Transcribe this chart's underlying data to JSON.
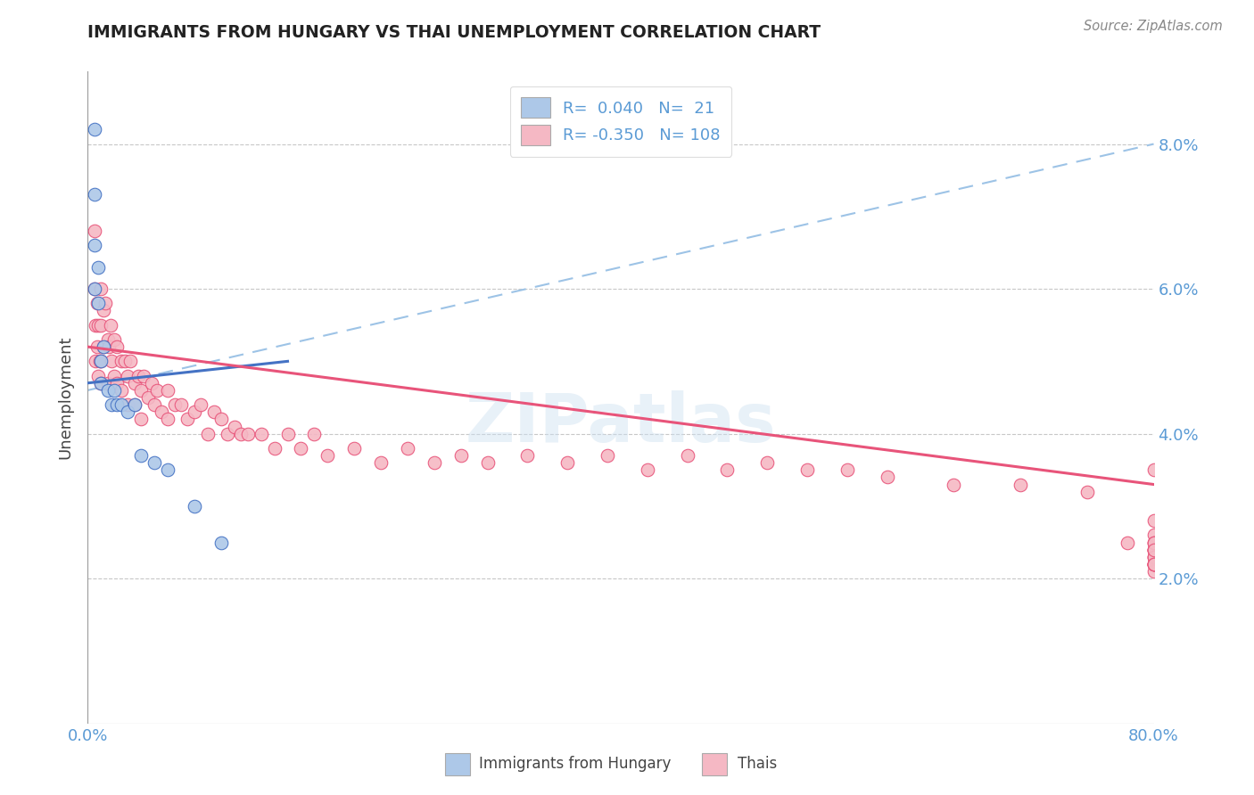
{
  "title": "IMMIGRANTS FROM HUNGARY VS THAI UNEMPLOYMENT CORRELATION CHART",
  "source": "Source: ZipAtlas.com",
  "ylabel": "Unemployment",
  "x_min": 0.0,
  "x_max": 0.8,
  "y_min": 0.0,
  "y_max": 0.09,
  "y_ticks": [
    0.02,
    0.04,
    0.06,
    0.08
  ],
  "y_tick_labels": [
    "2.0%",
    "4.0%",
    "6.0%",
    "8.0%"
  ],
  "legend_label1": "Immigrants from Hungary",
  "legend_label2": "Thais",
  "r1": 0.04,
  "n1": 21,
  "r2": -0.35,
  "n2": 108,
  "color_hungary": "#adc8e8",
  "color_thais": "#f5b8c4",
  "color_line_hungary": "#4472c4",
  "color_line_thais": "#e8547a",
  "color_dashed": "#9dc3e6",
  "watermark": "ZIPatlas",
  "hungary_x": [
    0.005,
    0.005,
    0.005,
    0.005,
    0.008,
    0.008,
    0.01,
    0.01,
    0.012,
    0.015,
    0.018,
    0.02,
    0.022,
    0.025,
    0.03,
    0.035,
    0.04,
    0.05,
    0.06,
    0.08,
    0.1
  ],
  "hungary_y": [
    0.082,
    0.073,
    0.066,
    0.06,
    0.063,
    0.058,
    0.05,
    0.047,
    0.052,
    0.046,
    0.044,
    0.046,
    0.044,
    0.044,
    0.043,
    0.044,
    0.037,
    0.036,
    0.035,
    0.03,
    0.025
  ],
  "thais_x": [
    0.005,
    0.005,
    0.006,
    0.006,
    0.007,
    0.007,
    0.008,
    0.008,
    0.009,
    0.01,
    0.01,
    0.01,
    0.01,
    0.012,
    0.012,
    0.013,
    0.015,
    0.015,
    0.016,
    0.017,
    0.018,
    0.02,
    0.02,
    0.022,
    0.022,
    0.025,
    0.025,
    0.028,
    0.03,
    0.03,
    0.032,
    0.035,
    0.035,
    0.038,
    0.04,
    0.04,
    0.042,
    0.045,
    0.048,
    0.05,
    0.052,
    0.055,
    0.06,
    0.06,
    0.065,
    0.07,
    0.075,
    0.08,
    0.085,
    0.09,
    0.095,
    0.1,
    0.105,
    0.11,
    0.115,
    0.12,
    0.13,
    0.14,
    0.15,
    0.16,
    0.17,
    0.18,
    0.2,
    0.22,
    0.24,
    0.26,
    0.28,
    0.3,
    0.33,
    0.36,
    0.39,
    0.42,
    0.45,
    0.48,
    0.51,
    0.54,
    0.57,
    0.6,
    0.65,
    0.7,
    0.75,
    0.78,
    0.8,
    0.8,
    0.8,
    0.8,
    0.8,
    0.8,
    0.8,
    0.8,
    0.8,
    0.8,
    0.8,
    0.8,
    0.8,
    0.8,
    0.8,
    0.8,
    0.8,
    0.8,
    0.8,
    0.8,
    0.8,
    0.8
  ],
  "thais_y": [
    0.068,
    0.06,
    0.055,
    0.05,
    0.058,
    0.052,
    0.055,
    0.048,
    0.05,
    0.06,
    0.055,
    0.05,
    0.047,
    0.057,
    0.052,
    0.058,
    0.053,
    0.047,
    0.052,
    0.055,
    0.05,
    0.053,
    0.048,
    0.052,
    0.047,
    0.05,
    0.046,
    0.05,
    0.048,
    0.044,
    0.05,
    0.047,
    0.044,
    0.048,
    0.046,
    0.042,
    0.048,
    0.045,
    0.047,
    0.044,
    0.046,
    0.043,
    0.046,
    0.042,
    0.044,
    0.044,
    0.042,
    0.043,
    0.044,
    0.04,
    0.043,
    0.042,
    0.04,
    0.041,
    0.04,
    0.04,
    0.04,
    0.038,
    0.04,
    0.038,
    0.04,
    0.037,
    0.038,
    0.036,
    0.038,
    0.036,
    0.037,
    0.036,
    0.037,
    0.036,
    0.037,
    0.035,
    0.037,
    0.035,
    0.036,
    0.035,
    0.035,
    0.034,
    0.033,
    0.033,
    0.032,
    0.025,
    0.022,
    0.028,
    0.024,
    0.035,
    0.022,
    0.025,
    0.021,
    0.022,
    0.024,
    0.026,
    0.023,
    0.024,
    0.025,
    0.022,
    0.023,
    0.024,
    0.025,
    0.022,
    0.023,
    0.024,
    0.022,
    0.022
  ]
}
